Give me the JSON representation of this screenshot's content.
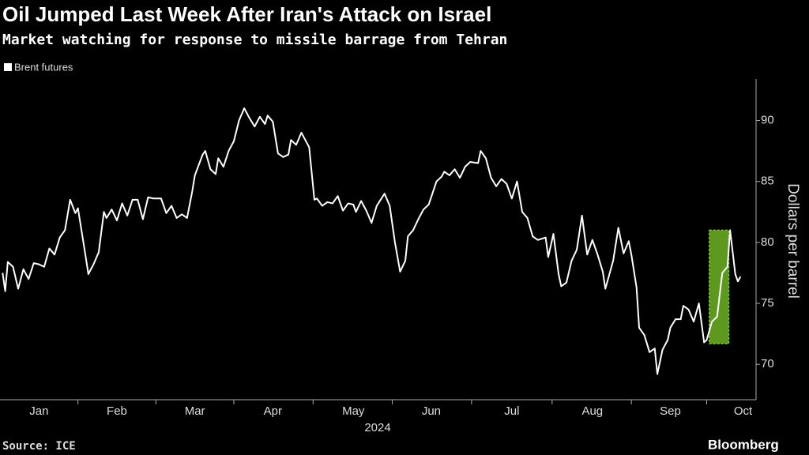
{
  "chart_data": {
    "type": "line",
    "title": "Oil Jumped Last Week After Iran's Attack on Israel",
    "subtitle": "Market watching for response to missile barrage from Tehran",
    "y_label": "Dollars per barrel",
    "x_label": "2024",
    "source": "Source: ICE",
    "logo": "Bloomberg",
    "legend_position": "top-left",
    "grid": false,
    "y_axis_side": "right",
    "xlim": [
      0,
      291
    ],
    "ylim": [
      67.1,
      93.4
    ],
    "yticks": [
      70,
      75,
      80,
      85,
      90
    ],
    "xticks": [
      {
        "value": 15,
        "label": "Jan"
      },
      {
        "value": 45,
        "label": "Feb"
      },
      {
        "value": 75,
        "label": "Mar"
      },
      {
        "value": 105,
        "label": "Apr"
      },
      {
        "value": 136,
        "label": "May"
      },
      {
        "value": 166,
        "label": "Jun"
      },
      {
        "value": 197,
        "label": "Jul"
      },
      {
        "value": 228,
        "label": "Aug"
      },
      {
        "value": 258,
        "label": "Sep"
      },
      {
        "value": 286,
        "label": "Oct"
      }
    ],
    "highlight": {
      "x": [
        273,
        280.5
      ],
      "y": [
        71.7,
        81
      ],
      "color": "#7ccc2a"
    },
    "x": [
      1,
      2,
      3,
      5,
      7,
      9,
      11,
      13,
      15,
      17,
      19,
      21,
      23,
      25,
      27,
      29,
      30,
      33,
      34,
      36,
      38,
      40,
      41,
      43,
      45,
      47,
      49,
      51,
      53,
      55,
      57,
      59,
      62,
      64,
      66,
      68,
      70,
      72,
      74,
      75,
      78,
      79,
      81,
      83,
      84,
      86,
      88,
      90,
      92,
      94,
      96,
      98,
      100,
      102,
      103,
      105,
      107,
      109,
      111,
      112,
      114,
      116,
      119,
      121,
      122,
      124,
      126,
      128,
      130,
      132,
      134,
      136,
      137,
      139,
      141,
      143,
      145,
      148,
      150,
      152,
      154,
      156,
      157,
      159,
      161,
      163,
      165,
      168,
      170,
      171,
      173,
      175,
      177,
      179,
      181,
      184,
      185,
      187,
      189,
      191,
      193,
      195,
      197,
      199,
      201,
      203,
      205,
      207,
      210,
      211,
      213,
      215,
      216,
      218,
      220,
      222,
      224,
      226,
      228,
      230,
      232,
      233,
      236,
      238,
      240,
      242,
      243,
      245,
      246,
      248,
      250,
      252,
      253,
      255,
      257,
      258,
      260,
      262,
      263,
      265,
      267,
      269,
      271,
      272,
      274,
      276,
      278,
      280,
      281,
      283,
      284,
      285
    ],
    "series": [
      {
        "name": "Brent futures",
        "color": "#ffffff",
        "values": [
          77.5,
          76.0,
          78.4,
          78.0,
          76.2,
          77.8,
          77.0,
          78.3,
          78.2,
          78.0,
          79.5,
          79.0,
          80.4,
          81.0,
          83.5,
          82.4,
          82.8,
          78.8,
          77.4,
          78.2,
          79.2,
          82.5,
          82.0,
          82.7,
          81.8,
          83.2,
          82.2,
          83.5,
          83.5,
          81.9,
          83.7,
          83.6,
          83.6,
          82.4,
          83.0,
          82.0,
          82.3,
          82.0,
          84.2,
          85.5,
          87.2,
          87.5,
          86.0,
          85.6,
          86.9,
          86.2,
          87.5,
          88.3,
          90.0,
          91.0,
          90.2,
          89.5,
          90.3,
          89.7,
          90.4,
          89.9,
          87.3,
          87.0,
          87.2,
          88.4,
          88.0,
          89.0,
          87.8,
          83.5,
          83.6,
          83.0,
          83.3,
          83.2,
          83.8,
          82.6,
          83.2,
          83.1,
          82.5,
          83.4,
          82.6,
          81.6,
          83.0,
          84.0,
          83.0,
          80.0,
          77.6,
          78.5,
          80.5,
          81.0,
          81.9,
          82.7,
          83.1,
          85.0,
          85.4,
          85.8,
          85.5,
          86.0,
          85.3,
          86.2,
          86.6,
          86.5,
          87.5,
          86.9,
          85.3,
          84.6,
          85.2,
          84.8,
          83.6,
          85.0,
          82.5,
          82.0,
          80.5,
          80.2,
          80.4,
          78.8,
          80.7,
          77.4,
          76.4,
          76.7,
          78.5,
          79.4,
          82.2,
          79.0,
          80.2,
          79.0,
          77.6,
          76.2,
          78.5,
          81.2,
          79.1,
          80.1,
          79.0,
          76.3,
          73.0,
          72.4,
          71.0,
          71.3,
          69.2,
          71.2,
          72.0,
          73.0,
          73.7,
          73.7,
          74.8,
          74.5,
          73.5,
          75.0,
          71.8,
          72.0,
          73.5,
          73.9,
          77.5,
          78.0,
          81.0,
          77.4,
          76.8,
          77.2
        ]
      }
    ]
  }
}
